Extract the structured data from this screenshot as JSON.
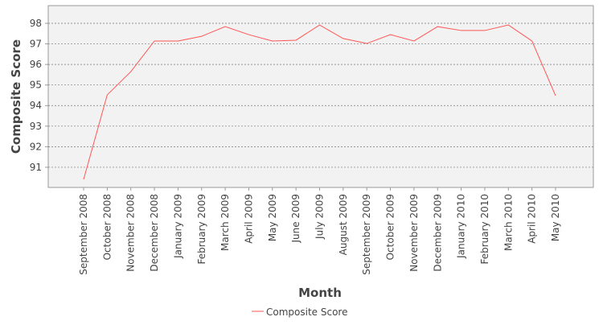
{
  "chart_data": {
    "type": "line",
    "x_label": "Month",
    "y_label": "Composite Score",
    "categories": [
      "September 2008",
      "October 2008",
      "November 2008",
      "December 2008",
      "January 2009",
      "February 2009",
      "March 2009",
      "April 2009",
      "May 2009",
      "June 2009",
      "July 2009",
      "August 2009",
      "September 2009",
      "October 2009",
      "November 2009",
      "December 2009",
      "January 2010",
      "February 2010",
      "March 2010",
      "April 2010",
      "May 2010"
    ],
    "series": [
      {
        "name": "Composite Score",
        "color": "#ff5555",
        "values": [
          90.41,
          94.52,
          95.65,
          97.14,
          97.14,
          97.37,
          97.84,
          97.45,
          97.14,
          97.18,
          97.92,
          97.26,
          97.02,
          97.45,
          97.14,
          97.84,
          97.65,
          97.65,
          97.92,
          97.14,
          94.48
        ]
      }
    ],
    "ylim": [
      90.02,
      98.86
    ],
    "yticks": [
      91,
      92,
      93,
      94,
      95,
      96,
      97,
      98
    ],
    "grid": true,
    "legend": "bottom"
  }
}
